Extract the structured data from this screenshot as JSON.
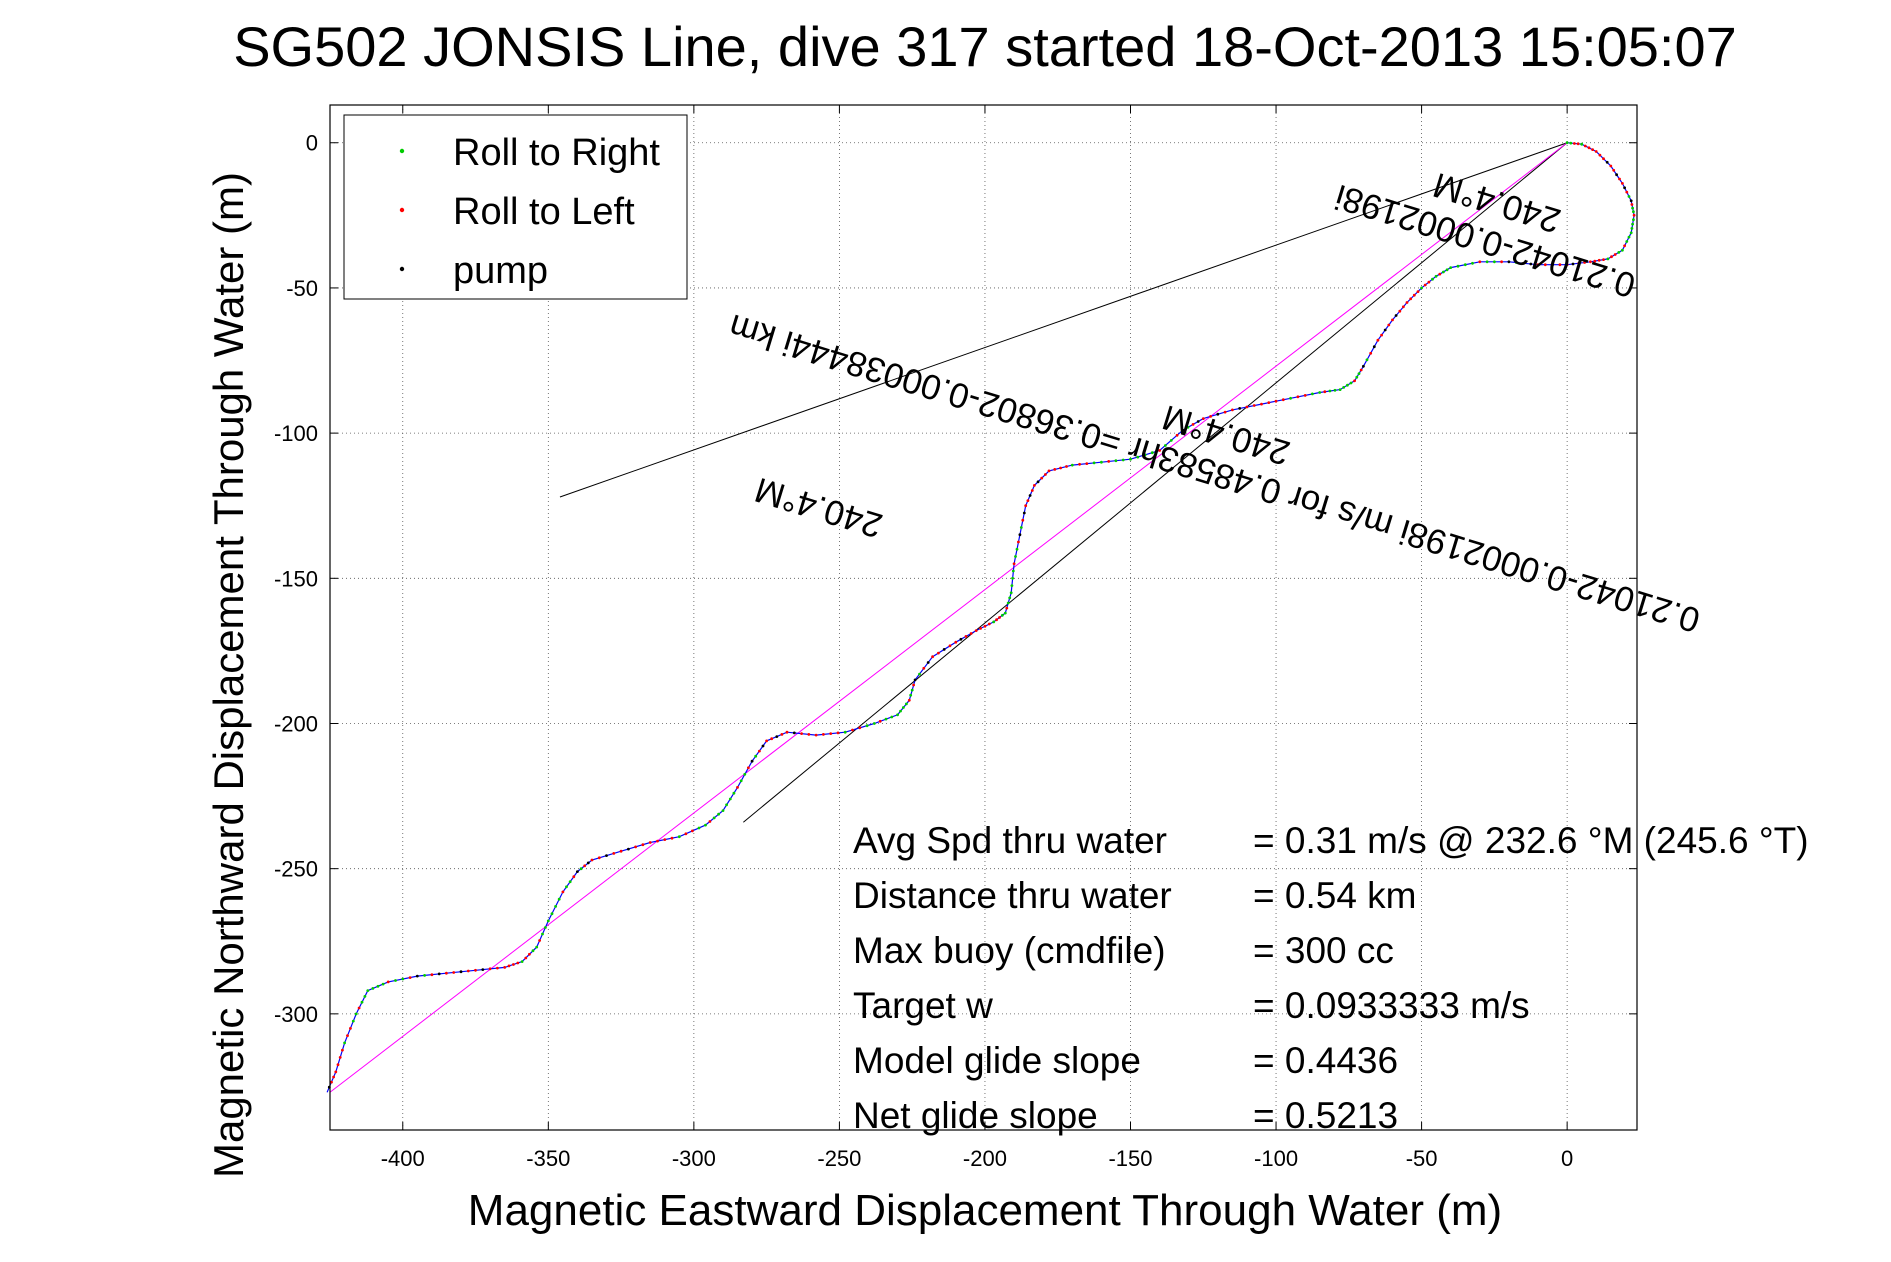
{
  "chart_data": {
    "type": "line",
    "title": "SG502 JONSIS Line, dive 317 started 18-Oct-2013 15:05:07",
    "xlabel": "Magnetic Eastward Displacement Through Water (m)",
    "ylabel": "Magnetic Northward Displacement Through Water (m)",
    "xlim": [
      -425,
      24
    ],
    "ylim": [
      -340,
      13
    ],
    "grid": true,
    "x_ticks": [
      -400,
      -350,
      -300,
      -250,
      -200,
      -150,
      -100,
      -50,
      0
    ],
    "y_ticks": [
      0,
      -50,
      -100,
      -150,
      -200,
      -250,
      -300
    ],
    "legend": {
      "placement": "top-left",
      "entries": [
        {
          "label": "Roll to Right",
          "color": "#00cc00"
        },
        {
          "label": "Roll to Left",
          "color": "#ff0000"
        },
        {
          "label": "pump",
          "color": "#000000"
        }
      ]
    },
    "track": {
      "color": "#0000ff",
      "points": [
        [
          0,
          0
        ],
        [
          5,
          -0.5
        ],
        [
          10,
          -3
        ],
        [
          15,
          -8
        ],
        [
          19,
          -14
        ],
        [
          22,
          -20
        ],
        [
          23,
          -25
        ],
        [
          22,
          -31
        ],
        [
          19,
          -37
        ],
        [
          14,
          -40
        ],
        [
          8,
          -41
        ],
        [
          0,
          -42
        ],
        [
          -10,
          -42
        ],
        [
          -20,
          -41
        ],
        [
          -30,
          -41
        ],
        [
          -40,
          -43
        ],
        [
          -45,
          -46
        ],
        [
          -50,
          -50
        ],
        [
          -55,
          -55
        ],
        [
          -60,
          -61
        ],
        [
          -65,
          -68
        ],
        [
          -70,
          -77
        ],
        [
          -73,
          -82
        ],
        [
          -78,
          -85
        ],
        [
          -85,
          -86
        ],
        [
          -95,
          -88
        ],
        [
          -105,
          -90
        ],
        [
          -115,
          -92
        ],
        [
          -125,
          -95
        ],
        [
          -132,
          -99
        ],
        [
          -140,
          -106
        ],
        [
          -150,
          -109
        ],
        [
          -160,
          -110
        ],
        [
          -170,
          -111
        ],
        [
          -178,
          -113
        ],
        [
          -183,
          -118
        ],
        [
          -186,
          -125
        ],
        [
          -188,
          -135
        ],
        [
          -190,
          -145
        ],
        [
          -191,
          -155
        ],
        [
          -193,
          -162
        ],
        [
          -197,
          -165
        ],
        [
          -203,
          -168
        ],
        [
          -210,
          -172
        ],
        [
          -218,
          -177
        ],
        [
          -224,
          -185
        ],
        [
          -226,
          -192
        ],
        [
          -230,
          -197
        ],
        [
          -238,
          -200
        ],
        [
          -248,
          -203
        ],
        [
          -258,
          -204
        ],
        [
          -268,
          -203
        ],
        [
          -275,
          -206
        ],
        [
          -280,
          -213
        ],
        [
          -285,
          -222
        ],
        [
          -290,
          -230
        ],
        [
          -296,
          -235
        ],
        [
          -305,
          -239
        ],
        [
          -315,
          -241
        ],
        [
          -325,
          -244
        ],
        [
          -335,
          -247
        ],
        [
          -340,
          -251
        ],
        [
          -345,
          -258
        ],
        [
          -350,
          -268
        ],
        [
          -354,
          -277
        ],
        [
          -359,
          -282
        ],
        [
          -365,
          -284
        ],
        [
          -375,
          -285
        ],
        [
          -385,
          -286
        ],
        [
          -395,
          -287
        ],
        [
          -405,
          -289
        ],
        [
          -412,
          -292
        ],
        [
          -416,
          -300
        ],
        [
          -420,
          -310
        ],
        [
          -423,
          -320
        ],
        [
          -426,
          -327
        ]
      ]
    },
    "reference_line": {
      "color": "#ff00ff",
      "points": [
        [
          0,
          0
        ],
        [
          -425,
          -327
        ]
      ]
    },
    "envelope_lines": [
      {
        "color": "#000000",
        "points": [
          [
            0,
            0
          ],
          [
            -346,
            -122
          ]
        ]
      },
      {
        "color": "#000000",
        "points": [
          [
            0,
            0
          ],
          [
            -283,
            -234
          ]
        ]
      }
    ],
    "annotations": [
      {
        "line1": "0.21042-0.0002198i m/s for 0.48583hr =0.36802-0.00038444i km",
        "line2": "240.4°M",
        "x": -120,
        "y": -110,
        "rotation_deg": 197
      },
      {
        "line1": "0.21042-0.0002198i",
        "line2": "240.4°M",
        "x": -27,
        "y": -30,
        "rotation_deg": 197
      },
      {
        "line1": "",
        "line2": "240.4°M",
        "x": -260,
        "y": -135,
        "rotation_deg": 197
      }
    ],
    "stats": [
      {
        "label": "Avg Spd thru water",
        "value": "=  0.31 m/s @ 232.6 °M (245.6 °T)"
      },
      {
        "label": "Distance thru water",
        "value": "=  0.54 km"
      },
      {
        "label": "Max buoy (cmdfile)",
        "value": "= 300 cc"
      },
      {
        "label": "Target w",
        "value": "= 0.0933333 m/s"
      },
      {
        "label": "Model glide slope",
        "value": "= 0.4436"
      },
      {
        "label": "Net glide slope",
        "value": "= 0.5213"
      }
    ]
  }
}
